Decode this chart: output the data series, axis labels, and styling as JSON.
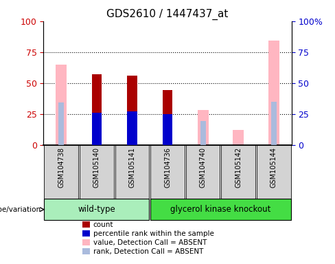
{
  "title": "GDS2610 / 1447437_at",
  "samples": [
    "GSM104738",
    "GSM105140",
    "GSM105141",
    "GSM104736",
    "GSM104740",
    "GSM105142",
    "GSM105144"
  ],
  "count": [
    null,
    57,
    56,
    44,
    null,
    null,
    null
  ],
  "percentile_rank": [
    null,
    26,
    27,
    25,
    null,
    null,
    null
  ],
  "value_absent": [
    65,
    null,
    null,
    null,
    28,
    12,
    84
  ],
  "rank_absent": [
    34,
    null,
    null,
    null,
    19,
    null,
    35
  ],
  "ylim": [
    0,
    100
  ],
  "yticks": [
    0,
    25,
    50,
    75,
    100
  ],
  "count_color": "#AA0000",
  "percentile_color": "#0000CC",
  "value_absent_color": "#FFB6C1",
  "rank_absent_color": "#AABBDD",
  "axis_color_left": "#CC0000",
  "axis_color_right": "#0000CC",
  "label_area_color": "#D3D3D3",
  "wt_color": "#AAEEBB",
  "gk_color": "#44DD44",
  "title_fontsize": 11,
  "tick_fontsize": 7,
  "group_fontsize": 8.5,
  "legend_fontsize": 7.5,
  "bar_width": 0.28
}
